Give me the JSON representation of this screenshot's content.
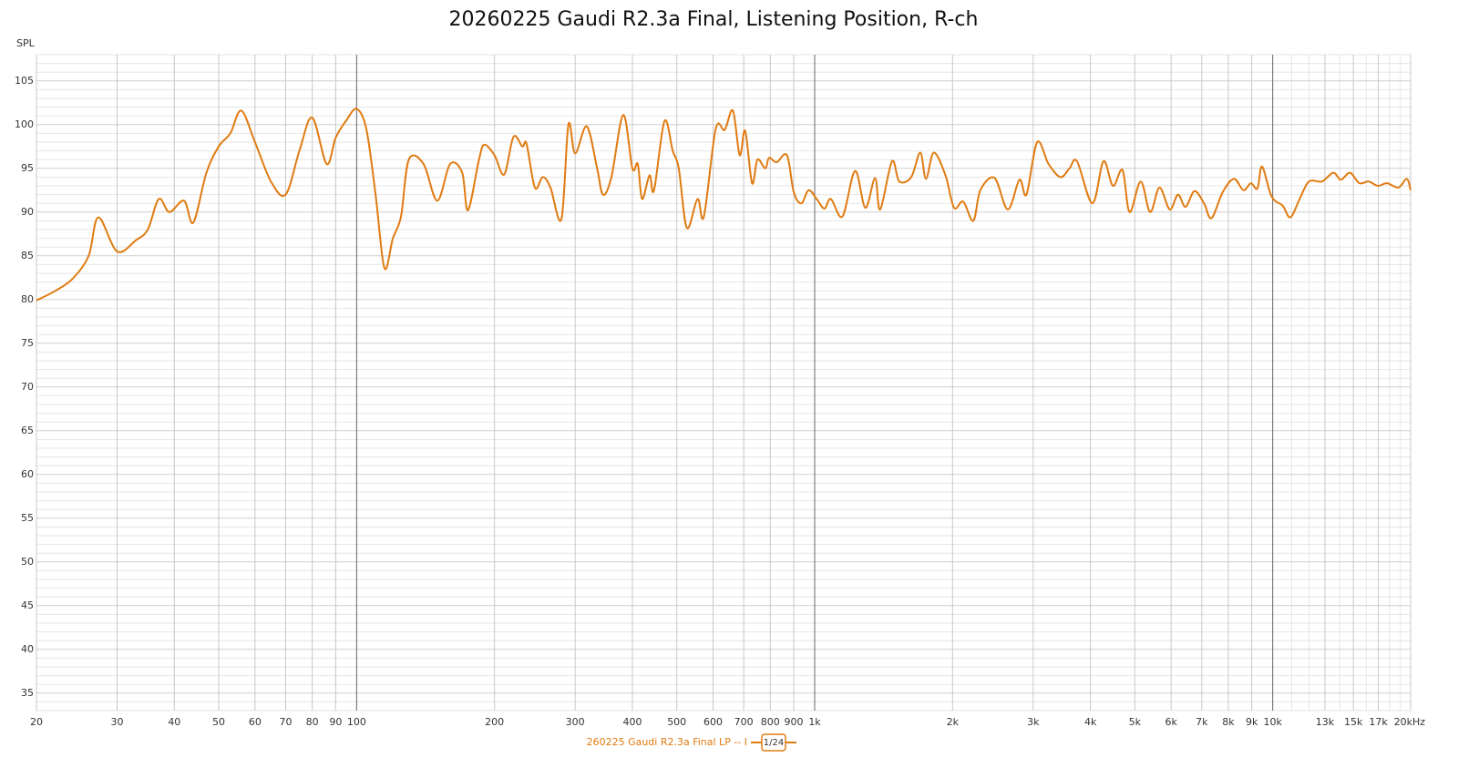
{
  "chart_data": {
    "type": "line",
    "title": "20260225 Gaudi R2.3a Final, Listening Position, R-ch",
    "y_label": "SPL",
    "xscale": "log",
    "grid": true,
    "xlim": [
      20,
      20000
    ],
    "ylim": [
      33,
      108
    ],
    "xticks": [
      20,
      30,
      40,
      50,
      60,
      70,
      80,
      90,
      100,
      200,
      300,
      400,
      500,
      600,
      700,
      800,
      900,
      {
        "value": 1000,
        "label": "1k"
      },
      {
        "value": 2000,
        "label": "2k"
      },
      {
        "value": 3000,
        "label": "3k"
      },
      {
        "value": 4000,
        "label": "4k"
      },
      {
        "value": 5000,
        "label": "5k"
      },
      {
        "value": 6000,
        "label": "6k"
      },
      {
        "value": 7000,
        "label": "7k"
      },
      {
        "value": 8000,
        "label": "8k"
      },
      {
        "value": 9000,
        "label": "9k"
      },
      {
        "value": 10000,
        "label": "10k"
      },
      {
        "value": 13000,
        "label": "13k"
      },
      {
        "value": 15000,
        "label": "15k"
      },
      {
        "value": 17000,
        "label": "17k"
      },
      {
        "value": 20000,
        "label": "20kHz"
      }
    ],
    "xminorticks": [
      11000,
      12000,
      14000,
      16000,
      18000,
      19000
    ],
    "yticks": [
      35,
      40,
      45,
      50,
      55,
      60,
      65,
      70,
      75,
      80,
      85,
      90,
      95,
      100,
      105
    ],
    "yminorticks": [
      33,
      34,
      36,
      37,
      38,
      39,
      41,
      42,
      43,
      44,
      46,
      47,
      48,
      49,
      51,
      52,
      53,
      54,
      56,
      57,
      58,
      59,
      61,
      62,
      63,
      64,
      66,
      67,
      68,
      69,
      71,
      72,
      73,
      74,
      76,
      77,
      78,
      79,
      81,
      82,
      83,
      84,
      86,
      87,
      88,
      89,
      91,
      92,
      93,
      94,
      96,
      97,
      98,
      99,
      101,
      102,
      103,
      104,
      106,
      107,
      108
    ],
    "smoothing": "1/24",
    "x": [
      20,
      22,
      24,
      26,
      27.3,
      30,
      33,
      35,
      37,
      39,
      42,
      44,
      47,
      50,
      53,
      56,
      60,
      65,
      70,
      75,
      80,
      86,
      90,
      95,
      100,
      105,
      110,
      115,
      120,
      125,
      130,
      140,
      150,
      160,
      170,
      175,
      185,
      190,
      200,
      210,
      220,
      230,
      235,
      245,
      255,
      265,
      280,
      290,
      300,
      318,
      335,
      345,
      360,
      382,
      400,
      411,
      420,
      436,
      446,
      470,
      490,
      505,
      526,
      555,
      573,
      608,
      636,
      663,
      686,
      705,
      730,
      750,
      780,
      795,
      826,
      870,
      900,
      935,
      970,
      1010,
      1050,
      1085,
      1150,
      1225,
      1290,
      1355,
      1390,
      1475,
      1530,
      1625,
      1700,
      1750,
      1820,
      1930,
      2015,
      2110,
      2220,
      2300,
      2470,
      2640,
      2800,
      2900,
      3060,
      3240,
      3440,
      3600,
      3740,
      4040,
      4270,
      4480,
      4700,
      4870,
      5150,
      5400,
      5660,
      5960,
      6210,
      6450,
      6750,
      7080,
      7350,
      7780,
      8230,
      8630,
      8960,
      9260,
      9480,
      9940,
      10520,
      10930,
      11450,
      12000,
      12810,
      13560,
      14080,
      14750,
      15460,
      16200,
      16960,
      17770,
      18810,
      19620,
      20000
    ],
    "series": [
      {
        "name": "260225 Gaudi R2.3a Final LP -- I",
        "color": "#e07b12",
        "values": [
          79.9,
          81,
          82.4,
          85,
          89.4,
          85.5,
          86.8,
          88,
          91.5,
          90,
          91.3,
          88.8,
          94.5,
          97.5,
          99,
          101.6,
          98,
          93.5,
          92,
          97,
          100.8,
          95.5,
          98.5,
          100.5,
          101.8,
          99.5,
          92,
          83.6,
          87,
          89.5,
          96,
          95.5,
          91.3,
          95.5,
          94.5,
          90.2,
          96,
          97.7,
          96.5,
          94.3,
          98.6,
          97.5,
          97.8,
          92.8,
          94,
          92.8,
          89.2,
          100,
          96.7,
          99.8,
          95,
          92,
          94,
          101.1,
          95,
          95.5,
          91.5,
          94.2,
          92.5,
          100.4,
          97,
          95,
          88.2,
          91.5,
          89.5,
          99.5,
          99.4,
          101.6,
          96.5,
          99.3,
          93.3,
          96,
          95,
          96.2,
          95.7,
          96.5,
          92.3,
          91,
          92.5,
          91.5,
          90.4,
          91.5,
          89.5,
          94.7,
          90.5,
          93.9,
          90.3,
          95.8,
          93.5,
          94,
          96.8,
          93.8,
          96.8,
          94.2,
          90.5,
          91.2,
          89,
          92.5,
          93.9,
          90.3,
          93.7,
          92,
          98,
          95.5,
          94,
          95,
          95.8,
          91,
          95.8,
          93,
          94.8,
          90,
          93.5,
          90,
          92.8,
          90.3,
          92,
          90.6,
          92.4,
          91,
          89.3,
          92.3,
          93.8,
          92.5,
          93.3,
          92.7,
          95.2,
          91.8,
          90.7,
          89.4,
          91.5,
          93.5,
          93.5,
          94.5,
          93.7,
          94.5,
          93.3,
          93.5,
          93,
          93.3,
          92.8,
          93.8,
          92.5
        ]
      }
    ]
  }
}
